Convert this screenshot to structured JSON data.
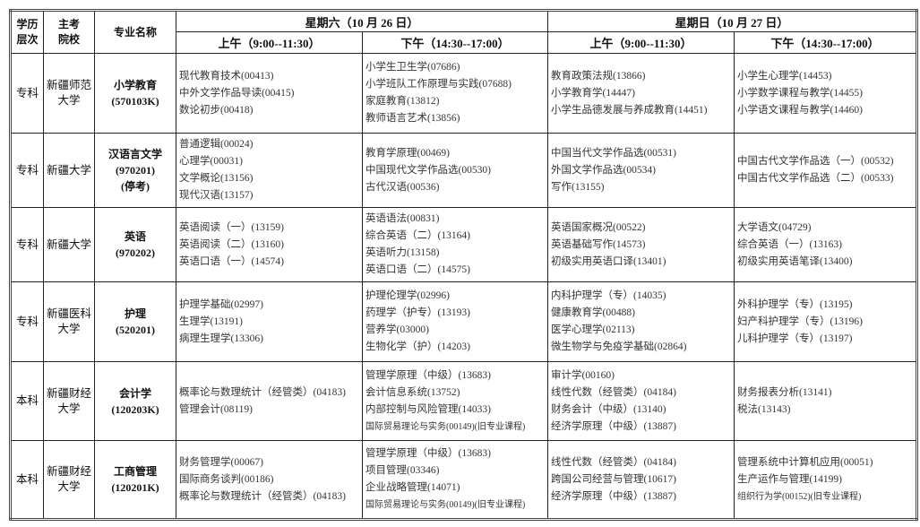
{
  "headers": {
    "level": [
      "学历",
      "层次"
    ],
    "school": [
      "主考",
      "院校"
    ],
    "major": "专业名称",
    "days": [
      "星期六（10 月 26 日）",
      "星期日（10 月 27 日）"
    ],
    "sessions": [
      "上午（9:00--11:30）",
      "下午（14:30--17:00）",
      "上午（9:00--11:30）",
      "下午（14:30--17:00）"
    ]
  },
  "rows": [
    {
      "level": "专科",
      "school": [
        "新疆师范",
        "大学"
      ],
      "major": [
        "小学教育",
        "(570103K)"
      ],
      "cells": [
        [
          "现代教育技术(00413)",
          "中外文学作品导读(00415)",
          "数论初步(00418)"
        ],
        [
          "小学生卫生学(07686)",
          "小学班队工作原理与实践(07688)",
          "家庭教育(13812)",
          "教师语言艺术(13856)"
        ],
        [
          "教育政策法规(13866)",
          "小学教育学(14447)",
          "小学生品德发展与养成教育(14451)"
        ],
        [
          "小学生心理学(14453)",
          "小学数学课程与教学(14455)",
          "小学语文课程与教学(14460)"
        ]
      ]
    },
    {
      "level": "专科",
      "school": [
        "新疆大学"
      ],
      "major": [
        "汉语言文学",
        "(970201)",
        "(停考)"
      ],
      "cells": [
        [
          "普通逻辑(00024)",
          "心理学(00031)",
          "文学概论(13156)",
          "现代汉语(13157)"
        ],
        [
          "教育学原理(00469)",
          "中国现代文学作品选(00530)",
          "古代汉语(00536)"
        ],
        [
          "中国当代文学作品选(00531)",
          "外国文学作品选(00534)",
          "写作(13155)"
        ],
        [
          "中国古代文学作品选（一）(00532)",
          "中国古代文学作品选（二）(00533)"
        ]
      ]
    },
    {
      "level": "专科",
      "school": [
        "新疆大学"
      ],
      "major": [
        "英语",
        "(970202)"
      ],
      "cells": [
        [
          "英语阅读（一）(13159)",
          "英语阅读（二）(13160)",
          "英语口语（一）(14574)"
        ],
        [
          "英语语法(00831)",
          "综合英语（二）(13164)",
          "英语听力(13158)",
          "英语口语（二）(14575)"
        ],
        [
          "英语国家概况(00522)",
          "英语基础写作(14573)",
          "初级实用英语口译(13401)"
        ],
        [
          "大学语文(04729)",
          "综合英语（一）(13163)",
          "初级实用英语笔译(13400)"
        ]
      ]
    },
    {
      "level": "专科",
      "school": [
        "新疆医科",
        "大学"
      ],
      "major": [
        "护理",
        "(520201)"
      ],
      "cells": [
        [
          "护理学基础(02997)",
          "生理学(13191)",
          "病理生理学(13306)"
        ],
        [
          "护理伦理学(02996)",
          "药理学（护专）(13193)",
          "营养学(03000)",
          "生物化学（护）(14203)"
        ],
        [
          "内科护理学（专）(14035)",
          "健康教育学(00488)",
          "医学心理学(02113)",
          "微生物学与免疫学基础(02864)"
        ],
        [
          "外科护理学（专）(13195)",
          "妇产科护理学（专）(13196)",
          "儿科护理学（专）(13197)"
        ]
      ]
    },
    {
      "level": "本科",
      "school": [
        "新疆财经",
        "大学"
      ],
      "major": [
        "会计学",
        "(120203K)"
      ],
      "cells": [
        [
          "概率论与数理统计（经管类）(04183)",
          "管理会计(08119)"
        ],
        [
          "管理学原理（中级）(13683)",
          "会计信息系统(13752)",
          "内部控制与风险管理(14033)",
          "国际贸易理论与实务(00149)(旧专业课程)"
        ],
        [
          "审计学(00160)",
          "线性代数（经管类）(04184)",
          "财务会计（中级）(13140)",
          "经济学原理（中级）(13887)"
        ],
        [
          "财务报表分析(13141)",
          "税法(13143)"
        ]
      ]
    },
    {
      "level": "本科",
      "school": [
        "新疆财经",
        "大学"
      ],
      "major": [
        "工商管理",
        "(120201K)"
      ],
      "cells": [
        [
          "财务管理学(00067)",
          "国际商务谈判(00186)",
          "概率论与数理统计（经管类）(04183)"
        ],
        [
          "管理学原理（中级）(13683)",
          "项目管理(03346)",
          "企业战略管理(14071)",
          "国际贸易理论与实务(00149)(旧专业课程)"
        ],
        [
          "线性代数（经管类）(04184)",
          "跨国公司经营与管理(10617)",
          "经济学原理（中级）(13887)"
        ],
        [
          "管理系统中计算机应用(00051)",
          "生产运作与管理(14199)",
          "组织行为学(00152)(旧专业课程)"
        ]
      ]
    }
  ]
}
